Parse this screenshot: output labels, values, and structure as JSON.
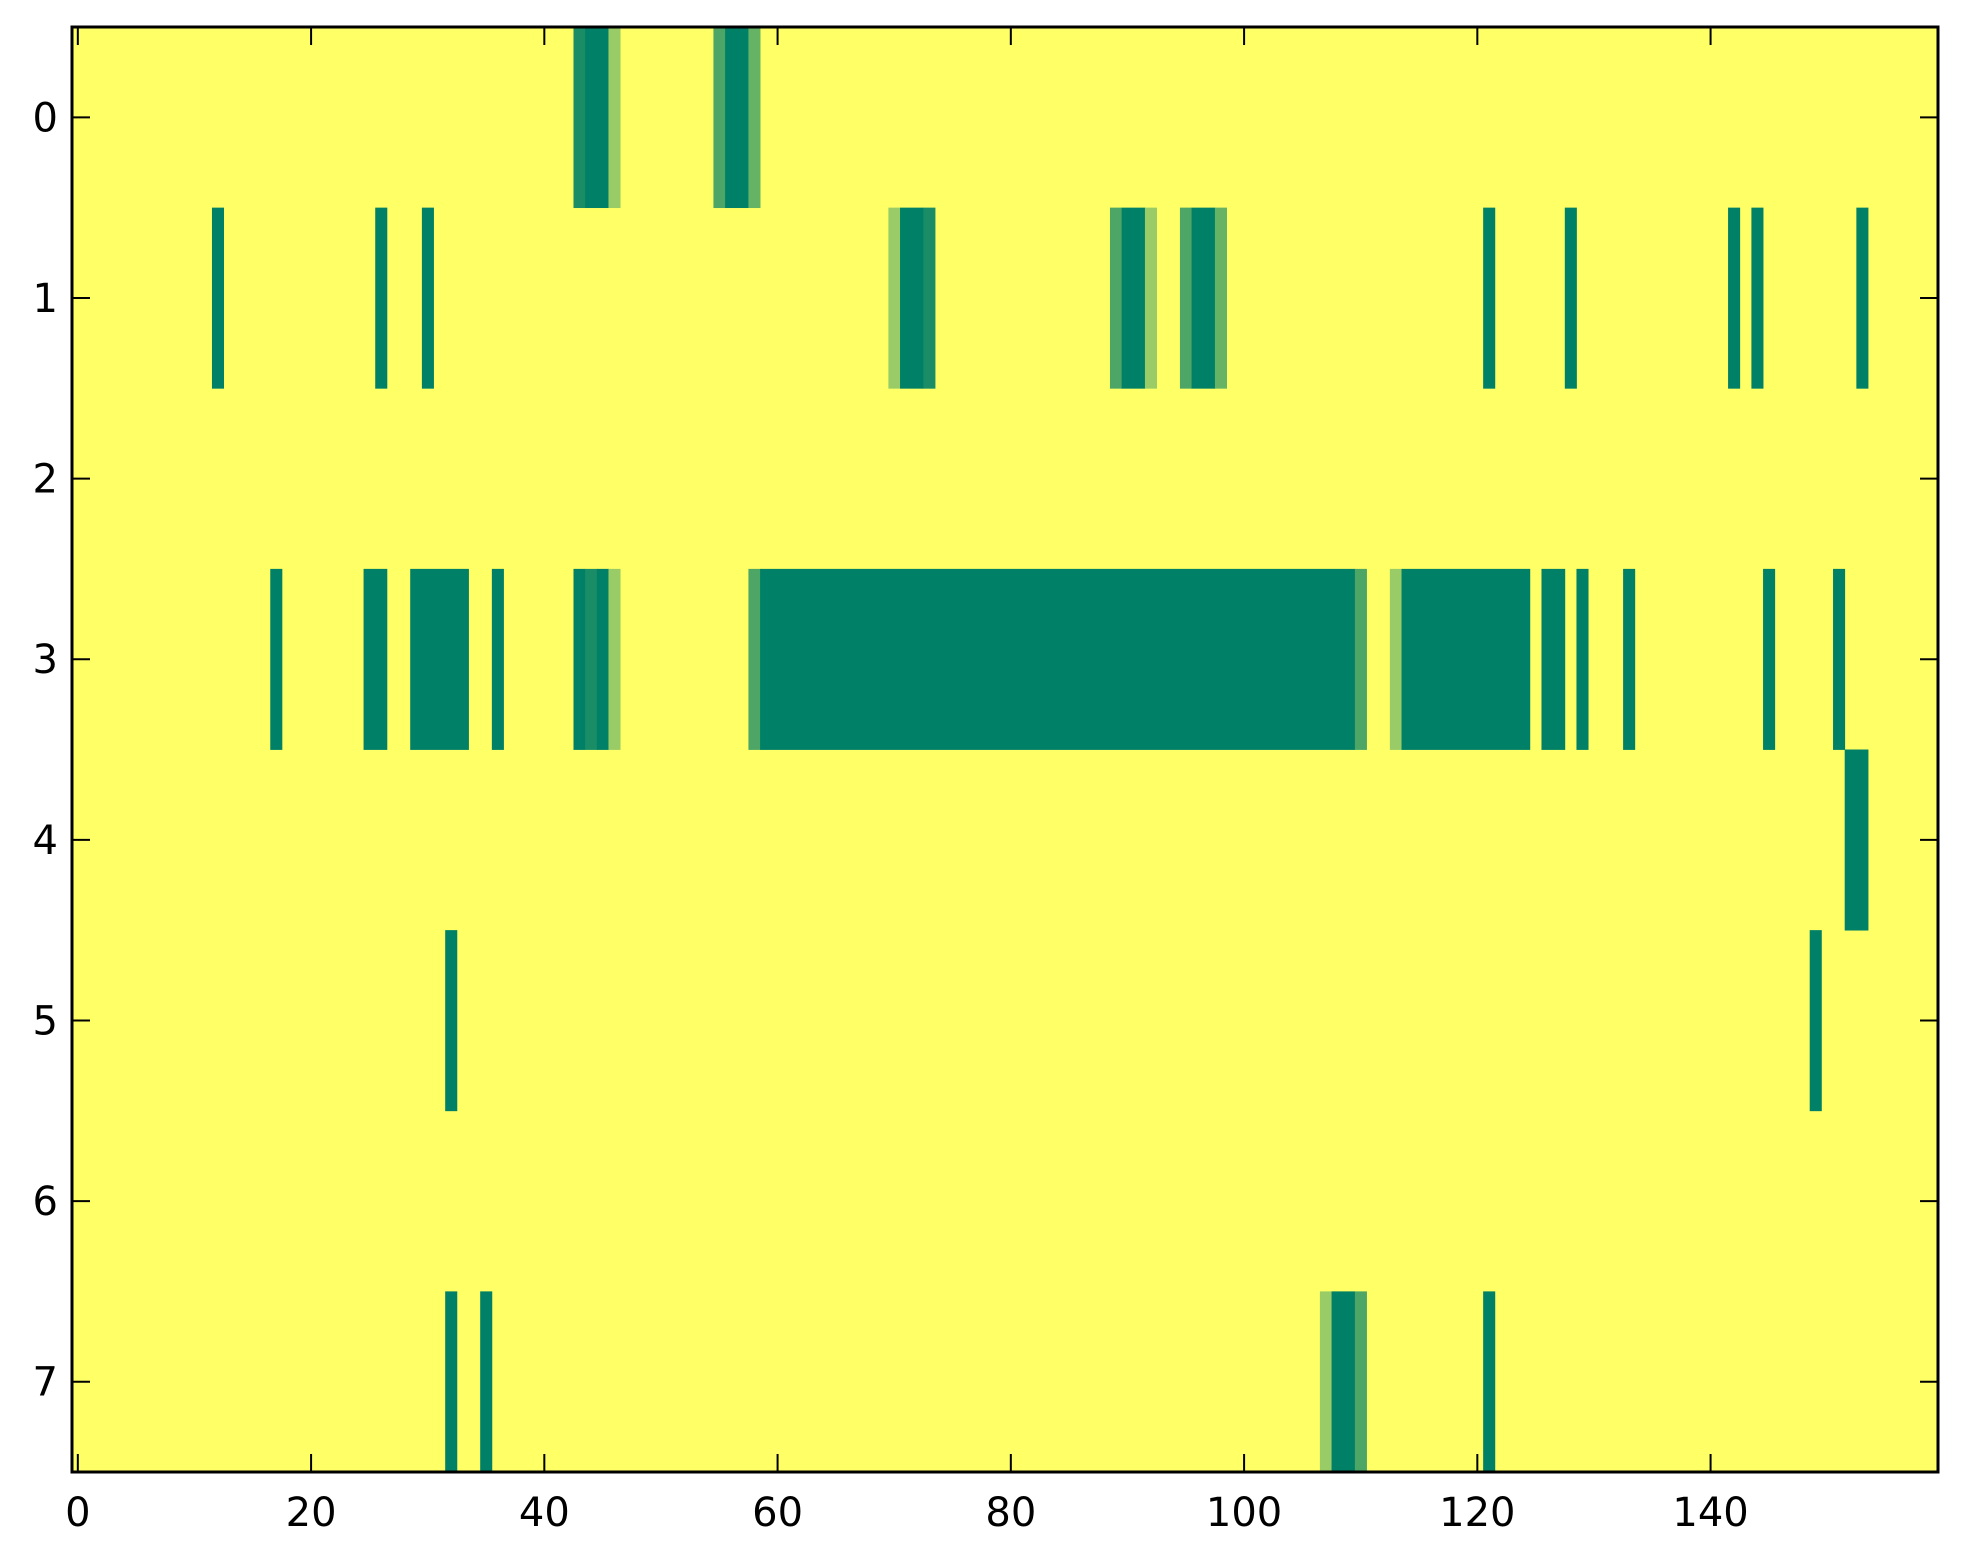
{
  "chart_data": {
    "type": "heatmap",
    "title": "",
    "xlabel": "",
    "ylabel": "",
    "xlim": [
      -0.5,
      159.5
    ],
    "ylim": [
      -0.5,
      7.5
    ],
    "y_inverted": true,
    "xticks": [
      0,
      20,
      40,
      60,
      80,
      100,
      120,
      140
    ],
    "xtick_labels": [
      "0",
      "20",
      "40",
      "60",
      "80",
      "100",
      "120",
      "140"
    ],
    "yticks": [
      0,
      1,
      2,
      3,
      4,
      5,
      6,
      7
    ],
    "ytick_labels": [
      "0",
      "1",
      "2",
      "3",
      "4",
      "5",
      "6",
      "7"
    ],
    "grid": false,
    "colormap": "summer",
    "value_range": [
      0,
      1
    ],
    "background_value": 1,
    "background_color": "#ffff66",
    "level_colors": {
      "0": "#008066",
      "0.25": "#40a066",
      "0.5": "#80c066",
      "0.75": "#c0e066",
      "1": "#ffff66"
    },
    "rows": [
      {
        "row": 0,
        "segments": [
          {
            "start": 43,
            "end": 43,
            "value": 0.1
          },
          {
            "start": 44,
            "end": 45,
            "value": 0.0
          },
          {
            "start": 46,
            "end": 46,
            "value": 0.6
          },
          {
            "start": 55,
            "end": 55,
            "value": 0.3
          },
          {
            "start": 56,
            "end": 57,
            "value": 0.0
          },
          {
            "start": 58,
            "end": 58,
            "value": 0.4
          }
        ]
      },
      {
        "row": 1,
        "segments": [
          {
            "start": 12,
            "end": 12,
            "value": 0.0
          },
          {
            "start": 26,
            "end": 26,
            "value": 0.0
          },
          {
            "start": 30,
            "end": 30,
            "value": 0.0
          },
          {
            "start": 70,
            "end": 70,
            "value": 0.6
          },
          {
            "start": 71,
            "end": 72,
            "value": 0.0
          },
          {
            "start": 73,
            "end": 73,
            "value": 0.1
          },
          {
            "start": 89,
            "end": 89,
            "value": 0.3
          },
          {
            "start": 90,
            "end": 91,
            "value": 0.0
          },
          {
            "start": 92,
            "end": 92,
            "value": 0.6
          },
          {
            "start": 95,
            "end": 95,
            "value": 0.3
          },
          {
            "start": 96,
            "end": 97,
            "value": 0.0
          },
          {
            "start": 98,
            "end": 98,
            "value": 0.4
          },
          {
            "start": 121,
            "end": 121,
            "value": 0.0
          },
          {
            "start": 128,
            "end": 128,
            "value": 0.0
          },
          {
            "start": 142,
            "end": 142,
            "value": 0.0
          },
          {
            "start": 144,
            "end": 144,
            "value": 0.0
          },
          {
            "start": 153,
            "end": 153,
            "value": 0.0
          }
        ]
      },
      {
        "row": 2,
        "segments": []
      },
      {
        "row": 3,
        "segments": [
          {
            "start": 17,
            "end": 17,
            "value": 0.0
          },
          {
            "start": 25,
            "end": 26,
            "value": 0.0
          },
          {
            "start": 29,
            "end": 33,
            "value": 0.0
          },
          {
            "start": 36,
            "end": 36,
            "value": 0.0
          },
          {
            "start": 43,
            "end": 43,
            "value": 0.0
          },
          {
            "start": 44,
            "end": 44,
            "value": 0.1
          },
          {
            "start": 45,
            "end": 45,
            "value": 0.0
          },
          {
            "start": 46,
            "end": 46,
            "value": 0.6
          },
          {
            "start": 58,
            "end": 58,
            "value": 0.3
          },
          {
            "start": 59,
            "end": 109,
            "value": 0.0
          },
          {
            "start": 110,
            "end": 110,
            "value": 0.3
          },
          {
            "start": 113,
            "end": 113,
            "value": 0.6
          },
          {
            "start": 114,
            "end": 124,
            "value": 0.0
          },
          {
            "start": 126,
            "end": 127,
            "value": 0.0
          },
          {
            "start": 129,
            "end": 129,
            "value": 0.0
          },
          {
            "start": 133,
            "end": 133,
            "value": 0.0
          },
          {
            "start": 145,
            "end": 145,
            "value": 0.0
          },
          {
            "start": 151,
            "end": 151,
            "value": 0.0
          }
        ]
      },
      {
        "row": 4,
        "segments": [
          {
            "start": 152,
            "end": 153,
            "value": 0.0
          }
        ]
      },
      {
        "row": 5,
        "segments": [
          {
            "start": 32,
            "end": 32,
            "value": 0.0
          },
          {
            "start": 149,
            "end": 149,
            "value": 0.0
          }
        ]
      },
      {
        "row": 6,
        "segments": []
      },
      {
        "row": 7,
        "segments": [
          {
            "start": 32,
            "end": 32,
            "value": 0.0
          },
          {
            "start": 35,
            "end": 35,
            "value": 0.0
          },
          {
            "start": 107,
            "end": 107,
            "value": 0.6
          },
          {
            "start": 108,
            "end": 109,
            "value": 0.0
          },
          {
            "start": 110,
            "end": 110,
            "value": 0.3
          },
          {
            "start": 121,
            "end": 121,
            "value": 0.0
          }
        ]
      }
    ]
  }
}
